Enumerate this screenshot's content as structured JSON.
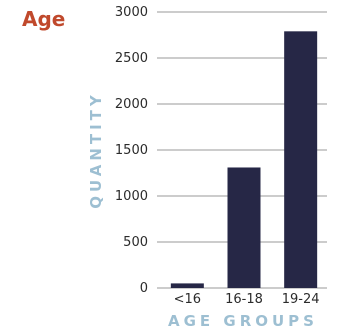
{
  "chart_data": {
    "type": "bar",
    "title": "Age",
    "xlabel": "AGE GROUPS",
    "ylabel": "QUANTITY",
    "categories": [
      "<16",
      "16-18",
      "19-24"
    ],
    "values": [
      50,
      1310,
      2790
    ],
    "ylim": [
      0,
      3000
    ],
    "yticks": [
      "0",
      "500",
      "1000",
      "1500",
      "2000",
      "2500",
      "3000"
    ],
    "grid": true,
    "legend": "none",
    "colors": {
      "title": "#C0492C",
      "bar": "#262746",
      "axis_label": "#9DBFD2",
      "tick": "#2B2B2B",
      "grid": "#9A9A9A"
    }
  }
}
